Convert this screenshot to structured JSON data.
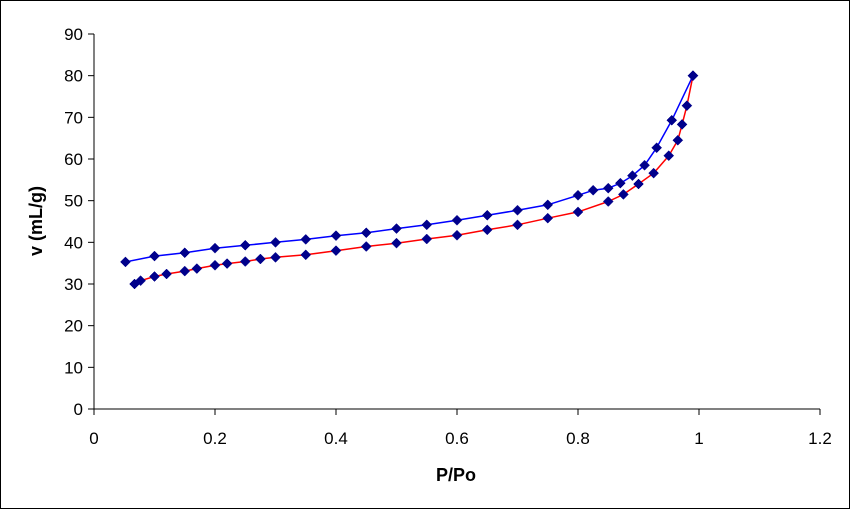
{
  "chart_data": {
    "type": "line",
    "title": "",
    "xlabel": "P/Po",
    "ylabel": "v (mL/g)",
    "xlim": [
      0,
      1.2
    ],
    "ylim": [
      0,
      90
    ],
    "x_ticks": [
      "0",
      "0.2",
      "0.4",
      "0.6",
      "0.8",
      "1",
      "1.2"
    ],
    "y_ticks": [
      "0",
      "10",
      "20",
      "30",
      "40",
      "50",
      "60",
      "70",
      "80",
      "90"
    ],
    "grid": false,
    "legend": "none",
    "marker": "diamond",
    "marker_color": "#00008B",
    "series": [
      {
        "color": "#FF0000",
        "points": [
          [
            0.067,
            30.0
          ],
          [
            0.077,
            30.8
          ],
          [
            0.1,
            31.8
          ],
          [
            0.12,
            32.4
          ],
          [
            0.15,
            33.1
          ],
          [
            0.17,
            33.7
          ],
          [
            0.2,
            34.5
          ],
          [
            0.22,
            34.9
          ],
          [
            0.25,
            35.4
          ],
          [
            0.275,
            36.0
          ],
          [
            0.3,
            36.4
          ],
          [
            0.35,
            37.0
          ],
          [
            0.4,
            38.0
          ],
          [
            0.45,
            39.0
          ],
          [
            0.5,
            39.8
          ],
          [
            0.55,
            40.8
          ],
          [
            0.6,
            41.7
          ],
          [
            0.65,
            43.0
          ],
          [
            0.7,
            44.2
          ],
          [
            0.75,
            45.8
          ],
          [
            0.8,
            47.3
          ],
          [
            0.85,
            49.8
          ],
          [
            0.875,
            51.5
          ],
          [
            0.9,
            54.0
          ],
          [
            0.925,
            56.6
          ],
          [
            0.95,
            60.8
          ],
          [
            0.965,
            64.5
          ],
          [
            0.972,
            68.3
          ],
          [
            0.98,
            72.8
          ],
          [
            0.99,
            80.0
          ]
        ]
      },
      {
        "color": "#0000FF",
        "points": [
          [
            0.99,
            80.0
          ],
          [
            0.955,
            69.3
          ],
          [
            0.93,
            62.7
          ],
          [
            0.91,
            58.5
          ],
          [
            0.89,
            56.0
          ],
          [
            0.87,
            54.2
          ],
          [
            0.85,
            53.0
          ],
          [
            0.825,
            52.5
          ],
          [
            0.8,
            51.3
          ],
          [
            0.75,
            49.0
          ],
          [
            0.7,
            47.7
          ],
          [
            0.65,
            46.5
          ],
          [
            0.6,
            45.3
          ],
          [
            0.55,
            44.2
          ],
          [
            0.5,
            43.3
          ],
          [
            0.45,
            42.3
          ],
          [
            0.4,
            41.6
          ],
          [
            0.35,
            40.7
          ],
          [
            0.3,
            40.0
          ],
          [
            0.25,
            39.3
          ],
          [
            0.2,
            38.6
          ],
          [
            0.15,
            37.5
          ],
          [
            0.1,
            36.7
          ],
          [
            0.052,
            35.3
          ]
        ]
      }
    ]
  }
}
